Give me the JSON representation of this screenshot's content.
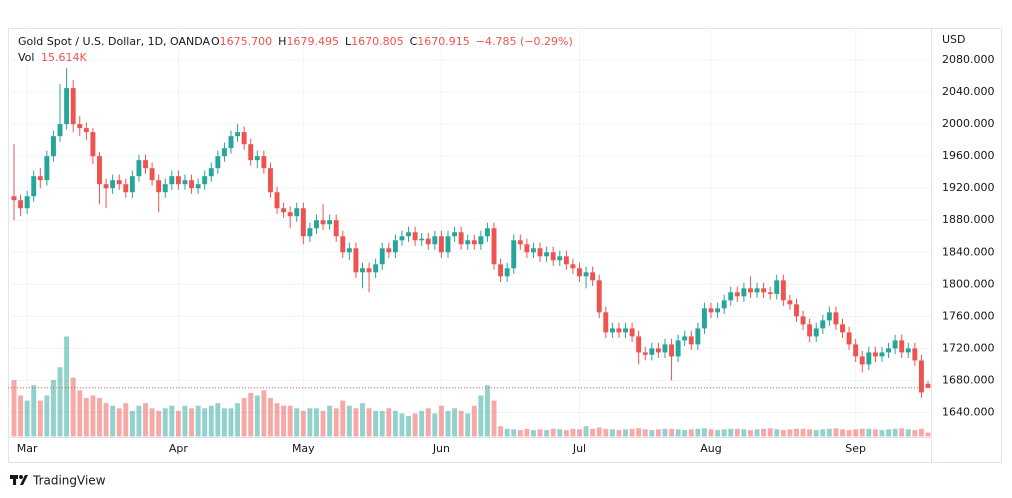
{
  "chart_data": {
    "type": "candlestick",
    "header": {
      "symbol": "Gold Spot / U.S. Dollar, 1D, OANDA",
      "ohlc_labels": [
        "O",
        "H",
        "L",
        "C"
      ],
      "ohlc_values": [
        "1675.700",
        "1679.495",
        "1670.805",
        "1670.915"
      ],
      "change": "−4.785 (−0.29%)",
      "volume_label": "Vol",
      "volume_value": "15.614K"
    },
    "currency": "USD",
    "brand": "TradingView",
    "up_color": "#26a69a",
    "down_color": "#ef5350",
    "grid": true,
    "last_price_line": true,
    "ylim": [
      1610,
      2120
    ],
    "yticks": [
      {
        "value": 1640,
        "label": "1640.000"
      },
      {
        "value": 1680,
        "label": "1680.000"
      },
      {
        "value": 1720,
        "label": "1720.000"
      },
      {
        "value": 1760,
        "label": "1760.000"
      },
      {
        "value": 1800,
        "label": "1800.000"
      },
      {
        "value": 1840,
        "label": "1840.000"
      },
      {
        "value": 1880,
        "label": "1880.000"
      },
      {
        "value": 1920,
        "label": "1920.000"
      },
      {
        "value": 1960,
        "label": "1960.000"
      },
      {
        "value": 2000,
        "label": "2000.000"
      },
      {
        "value": 2040,
        "label": "2040.000"
      },
      {
        "value": 2080,
        "label": "2080.000"
      }
    ],
    "categories": [
      null,
      null,
      "Mar",
      null,
      null,
      null,
      null,
      null,
      null,
      null,
      null,
      null,
      null,
      null,
      null,
      null,
      null,
      null,
      null,
      null,
      null,
      null,
      null,
      null,
      null,
      "Apr",
      null,
      null,
      null,
      null,
      null,
      null,
      null,
      null,
      null,
      null,
      null,
      null,
      null,
      null,
      null,
      null,
      null,
      null,
      "May",
      null,
      null,
      null,
      null,
      null,
      null,
      null,
      null,
      null,
      null,
      null,
      null,
      null,
      null,
      null,
      null,
      null,
      null,
      null,
      null,
      "Jun",
      null,
      null,
      null,
      null,
      null,
      null,
      null,
      null,
      null,
      null,
      null,
      null,
      null,
      null,
      null,
      null,
      null,
      null,
      null,
      null,
      "Jul",
      null,
      null,
      null,
      null,
      null,
      null,
      null,
      null,
      null,
      null,
      null,
      null,
      null,
      null,
      null,
      null,
      null,
      null,
      null,
      "Aug",
      null,
      null,
      null,
      null,
      null,
      null,
      null,
      null,
      null,
      null,
      null,
      null,
      null,
      null,
      null,
      null,
      null,
      null,
      null,
      null,
      null,
      "Sep",
      null,
      null,
      null,
      null,
      null,
      null,
      null,
      null,
      null,
      null,
      null
    ],
    "open": [
      1910,
      1905,
      1895,
      1910,
      1935,
      1930,
      1960,
      1985,
      2000,
      2045,
      2000,
      1995,
      1990,
      1960,
      1925,
      1920,
      1930,
      1925,
      1915,
      1935,
      1955,
      1945,
      1930,
      1915,
      1925,
      1935,
      1925,
      1930,
      1920,
      1925,
      1935,
      1945,
      1960,
      1970,
      1985,
      1990,
      1975,
      1955,
      1960,
      1945,
      1915,
      1895,
      1890,
      1885,
      1895,
      1860,
      1870,
      1880,
      1875,
      1880,
      1860,
      1840,
      1845,
      1815,
      1820,
      1815,
      1825,
      1845,
      1840,
      1855,
      1860,
      1865,
      1855,
      1857,
      1850,
      1860,
      1840,
      1860,
      1865,
      1850,
      1855,
      1850,
      1860,
      1870,
      1825,
      1810,
      1820,
      1855,
      1850,
      1840,
      1845,
      1835,
      1840,
      1830,
      1835,
      1825,
      1820,
      1810,
      1815,
      1805,
      1765,
      1740,
      1745,
      1740,
      1745,
      1735,
      1715,
      1712,
      1720,
      1715,
      1725,
      1710,
      1730,
      1735,
      1725,
      1745,
      1770,
      1765,
      1770,
      1780,
      1790,
      1785,
      1795,
      1790,
      1795,
      1790,
      1788,
      1805,
      1780,
      1775,
      1760,
      1750,
      1735,
      1745,
      1755,
      1765,
      1750,
      1740,
      1725,
      1710,
      1700,
      1715,
      1710,
      1715,
      1720,
      1730,
      1715,
      1720,
      1705,
      1675.7
    ],
    "high": [
      1975,
      1912,
      1917,
      1942,
      1945,
      1967,
      1992,
      2050,
      2070,
      2055,
      2010,
      2002,
      1995,
      1965,
      1932,
      1937,
      1937,
      1932,
      1942,
      1962,
      1962,
      1952,
      1937,
      1932,
      1942,
      1942,
      1937,
      1937,
      1932,
      1942,
      1952,
      1967,
      1977,
      1992,
      2000,
      1997,
      1982,
      1967,
      1967,
      1952,
      1922,
      1902,
      1897,
      1902,
      1902,
      1877,
      1887,
      1900,
      1887,
      1887,
      1867,
      1852,
      1852,
      1827,
      1827,
      1832,
      1852,
      1852,
      1862,
      1867,
      1872,
      1872,
      1864,
      1864,
      1867,
      1867,
      1867,
      1872,
      1872,
      1862,
      1862,
      1867,
      1877,
      1877,
      1832,
      1827,
      1862,
      1862,
      1857,
      1852,
      1852,
      1847,
      1847,
      1842,
      1842,
      1832,
      1827,
      1822,
      1822,
      1812,
      1772,
      1752,
      1752,
      1752,
      1752,
      1742,
      1722,
      1727,
      1727,
      1732,
      1732,
      1737,
      1742,
      1742,
      1752,
      1777,
      1777,
      1777,
      1787,
      1797,
      1797,
      1802,
      1810,
      1802,
      1802,
      1797,
      1812,
      1812,
      1787,
      1782,
      1767,
      1757,
      1752,
      1762,
      1772,
      1772,
      1757,
      1747,
      1732,
      1717,
      1722,
      1722,
      1722,
      1727,
      1737,
      1737,
      1727,
      1727,
      1712,
      1679.495
    ],
    "low": [
      1880,
      1885,
      1888,
      1903,
      1920,
      1923,
      1953,
      1978,
      1993,
      1990,
      1985,
      1980,
      1950,
      1900,
      1895,
      1913,
      1918,
      1908,
      1908,
      1928,
      1938,
      1923,
      1890,
      1908,
      1918,
      1918,
      1918,
      1913,
      1913,
      1918,
      1928,
      1938,
      1953,
      1963,
      1978,
      1968,
      1948,
      1945,
      1938,
      1908,
      1888,
      1883,
      1870,
      1878,
      1850,
      1853,
      1863,
      1868,
      1868,
      1853,
      1833,
      1830,
      1808,
      1795,
      1790,
      1808,
      1818,
      1833,
      1833,
      1848,
      1853,
      1848,
      1848,
      1843,
      1843,
      1833,
      1833,
      1853,
      1843,
      1843,
      1843,
      1843,
      1853,
      1818,
      1803,
      1803,
      1813,
      1843,
      1833,
      1833,
      1828,
      1828,
      1823,
      1823,
      1818,
      1813,
      1803,
      1795,
      1798,
      1758,
      1733,
      1733,
      1733,
      1733,
      1728,
      1700,
      1705,
      1705,
      1708,
      1708,
      1680,
      1703,
      1723,
      1718,
      1718,
      1738,
      1758,
      1758,
      1763,
      1773,
      1778,
      1778,
      1783,
      1783,
      1783,
      1781,
      1781,
      1773,
      1768,
      1753,
      1743,
      1728,
      1728,
      1738,
      1748,
      1743,
      1733,
      1718,
      1703,
      1690,
      1693,
      1703,
      1703,
      1708,
      1713,
      1708,
      1708,
      1698,
      1658,
      1670.805
    ],
    "close": [
      1905,
      1895,
      1910,
      1935,
      1930,
      1960,
      1985,
      2000,
      2045,
      2000,
      1995,
      1990,
      1960,
      1925,
      1920,
      1930,
      1925,
      1915,
      1935,
      1955,
      1945,
      1930,
      1915,
      1925,
      1935,
      1925,
      1930,
      1920,
      1925,
      1935,
      1945,
      1960,
      1970,
      1985,
      1990,
      1975,
      1955,
      1960,
      1945,
      1915,
      1895,
      1890,
      1885,
      1895,
      1860,
      1870,
      1880,
      1875,
      1880,
      1860,
      1840,
      1845,
      1815,
      1820,
      1815,
      1825,
      1845,
      1840,
      1855,
      1860,
      1865,
      1855,
      1857,
      1850,
      1860,
      1840,
      1860,
      1865,
      1850,
      1855,
      1850,
      1860,
      1870,
      1825,
      1810,
      1820,
      1855,
      1850,
      1840,
      1845,
      1835,
      1840,
      1830,
      1835,
      1825,
      1820,
      1810,
      1815,
      1805,
      1765,
      1740,
      1745,
      1740,
      1745,
      1735,
      1715,
      1712,
      1720,
      1715,
      1725,
      1710,
      1730,
      1735,
      1725,
      1745,
      1770,
      1765,
      1770,
      1780,
      1790,
      1785,
      1795,
      1790,
      1795,
      1790,
      1788,
      1805,
      1780,
      1775,
      1760,
      1750,
      1735,
      1745,
      1755,
      1765,
      1750,
      1740,
      1725,
      1710,
      1700,
      1715,
      1710,
      1715,
      1720,
      1730,
      1715,
      1720,
      1705,
      1665,
      1670.915
    ],
    "volume": [
      220,
      160,
      140,
      200,
      140,
      160,
      220,
      270,
      390,
      230,
      180,
      150,
      160,
      150,
      130,
      120,
      110,
      130,
      100,
      120,
      130,
      110,
      100,
      110,
      120,
      100,
      120,
      110,
      120,
      110,
      120,
      130,
      110,
      110,
      130,
      150,
      170,
      160,
      180,
      150,
      130,
      120,
      120,
      110,
      100,
      110,
      110,
      100,
      120,
      110,
      140,
      120,
      110,
      130,
      110,
      100,
      100,
      110,
      100,
      90,
      80,
      90,
      100,
      110,
      90,
      120,
      100,
      110,
      100,
      90,
      120,
      160,
      200,
      140,
      40,
      30,
      28,
      25,
      30,
      25,
      28,
      25,
      30,
      28,
      25,
      30,
      28,
      40,
      30,
      35,
      30,
      28,
      25,
      28,
      30,
      32,
      28,
      25,
      28,
      30,
      30,
      28,
      25,
      28,
      30,
      32,
      28,
      25,
      28,
      30,
      30,
      28,
      25,
      28,
      30,
      32,
      28,
      25,
      28,
      30,
      30,
      28,
      25,
      28,
      30,
      32,
      28,
      25,
      28,
      30,
      30,
      28,
      25,
      28,
      30,
      32,
      28,
      25,
      30,
      15.614
    ]
  }
}
